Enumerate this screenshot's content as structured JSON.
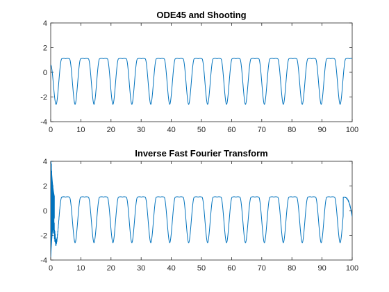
{
  "figure": {
    "background": "#ffffff"
  },
  "chart_data": [
    {
      "type": "line",
      "title": "ODE45 and Shooting",
      "xlabel": "",
      "ylabel": "",
      "xlim": [
        0,
        100
      ],
      "ylim": [
        -4,
        4
      ],
      "xticks": [
        0,
        10,
        20,
        30,
        40,
        50,
        60,
        70,
        80,
        90,
        100
      ],
      "yticks": [
        -4,
        -2,
        0,
        2,
        4
      ],
      "grid": false,
      "legend": "none",
      "series_color": "#0072BD",
      "signal": {
        "description": "periodic waveform, flat top near 1, sharp troughs near -2.6",
        "period": 6.28,
        "start_value": 0.6,
        "peak_value": 1.1,
        "trough_value": -2.6,
        "first_trough_x": 1.8
      }
    },
    {
      "type": "line",
      "title": "Inverse Fast Fourier Transform",
      "xlabel": "",
      "ylabel": "",
      "xlim": [
        0,
        100
      ],
      "ylim": [
        -4,
        4
      ],
      "xticks": [
        0,
        10,
        20,
        30,
        40,
        50,
        60,
        70,
        80,
        90,
        100
      ],
      "yticks": [
        -4,
        -2,
        0,
        2,
        4
      ],
      "grid": false,
      "legend": "none",
      "series_color": "#0072BD",
      "signal": {
        "description": "same periodic waveform with Gibbs ringing near both ends",
        "period": 6.28,
        "peak_value": 1.1,
        "trough_value": -2.6,
        "first_trough_x": 1.8,
        "ringing_start_amplitude": 4.5,
        "ringing_decay_end_x": 5,
        "ringing_end_start_x": 97,
        "end_value": -0.5
      }
    }
  ]
}
